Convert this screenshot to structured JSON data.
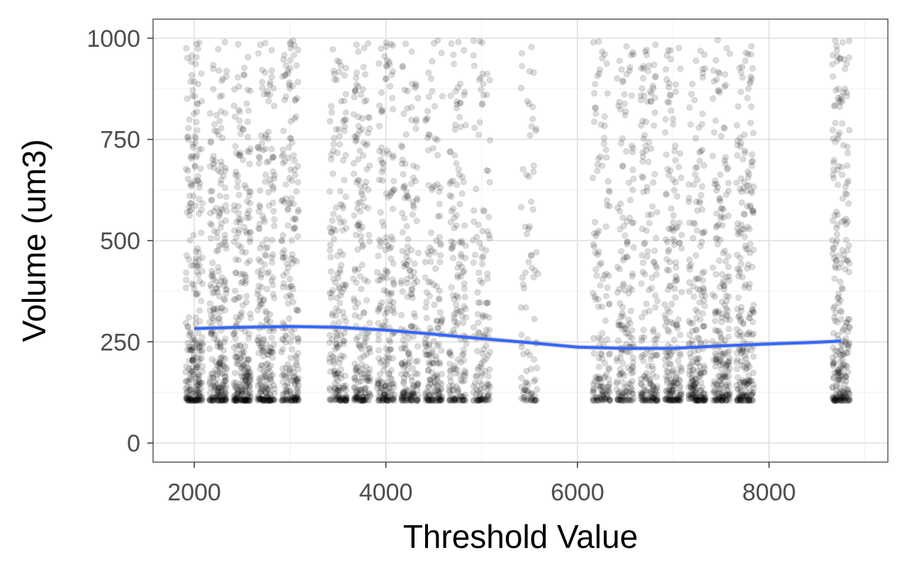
{
  "chart_data": {
    "type": "scatter",
    "title": "",
    "xlabel": "Threshold Value",
    "ylabel": "Volume (um3)",
    "xlim": [
      1570,
      9240
    ],
    "ylim": [
      -47,
      1047
    ],
    "x_ticks": [
      2000,
      4000,
      6000,
      8000
    ],
    "x_tick_labels": [
      "2000",
      "4000",
      "6000",
      "8000"
    ],
    "y_ticks": [
      0,
      250,
      500,
      750,
      1000
    ],
    "y_tick_labels": [
      "0",
      "250",
      "500",
      "750",
      "1000"
    ],
    "grid": true,
    "point_color": "#000000",
    "point_opacity": 0.14,
    "smooth_color": "#3366ff",
    "ribbon_color": "#999999",
    "series": [
      {
        "kind": "points",
        "note_clusters": [
          {
            "x_center": 2000,
            "count": 260
          },
          {
            "x_center": 2250,
            "count": 260
          },
          {
            "x_center": 2500,
            "count": 260
          },
          {
            "x_center": 2750,
            "count": 240
          },
          {
            "x_center": 3000,
            "count": 220
          },
          {
            "x_center": 3500,
            "count": 200
          },
          {
            "x_center": 3750,
            "count": 200
          },
          {
            "x_center": 4000,
            "count": 200
          },
          {
            "x_center": 4250,
            "count": 190
          },
          {
            "x_center": 4500,
            "count": 180
          },
          {
            "x_center": 4750,
            "count": 170
          },
          {
            "x_center": 5000,
            "count": 140
          },
          {
            "x_center": 5500,
            "count": 90
          },
          {
            "x_center": 6250,
            "count": 150
          },
          {
            "x_center": 6500,
            "count": 170
          },
          {
            "x_center": 6750,
            "count": 180
          },
          {
            "x_center": 7000,
            "count": 200
          },
          {
            "x_center": 7250,
            "count": 210
          },
          {
            "x_center": 7500,
            "count": 220
          },
          {
            "x_center": 7750,
            "count": 230
          },
          {
            "x_center": 8750,
            "count": 260
          }
        ]
      },
      {
        "kind": "smooth",
        "x": [
          2000,
          2500,
          3000,
          3500,
          4000,
          4500,
          5000,
          5500,
          6000,
          6500,
          7000,
          7500,
          8000,
          8500,
          8750
        ],
        "y": [
          283,
          286,
          288,
          286,
          279,
          269,
          258,
          248,
          237,
          234,
          234,
          240,
          245,
          249,
          252
        ]
      }
    ]
  }
}
